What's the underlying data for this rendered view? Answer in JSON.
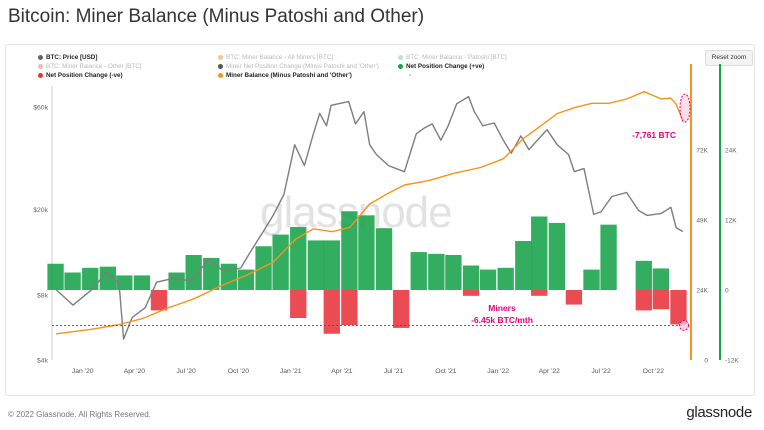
{
  "title": "Bitcoin: Miner Balance (Minus Patoshi and Other)",
  "reset_zoom": "Reset zoom",
  "legend": [
    {
      "label": "BTC: Price [USD]",
      "color": "#666666",
      "state": "active",
      "icon": "circle-marker-icon"
    },
    {
      "label": "BTC: Miner Balance - All Miners [BTC]",
      "color": "#f7931a",
      "state": "muted",
      "icon": "circle-marker-icon"
    },
    {
      "label": "BTC: Miner Balance - Patoshi [BTC]",
      "color": "#7ad0c7",
      "state": "muted",
      "icon": "circle-marker-icon"
    },
    {
      "label": "BTC: Miner Balance - Other [BTC]",
      "color": "#f28b82",
      "state": "muted",
      "icon": "circle-marker-icon"
    },
    {
      "label": "Miner Net Position Change (Minus Patoshi and 'Other')",
      "color": "#555555",
      "state": "muted",
      "icon": "circle-marker-icon"
    },
    {
      "label": "Net Position Change (+ve)",
      "color": "#17a34a",
      "state": "active",
      "icon": "circle-marker-icon"
    },
    {
      "label": "Net Position Change (-ve)",
      "color": "#e8333b",
      "state": "active",
      "icon": "circle-marker-icon"
    },
    {
      "label": "Miner Balance (Minus Patoshi and 'Other')",
      "color": "#f7931a",
      "state": "active",
      "icon": "circle-marker-icon"
    },
    {
      "label": "-",
      "color": "#17a34a",
      "state": "active",
      "icon": ""
    }
  ],
  "chart_data": {
    "type": "line",
    "x_ticks": [
      "Jan '20",
      "Apr '20",
      "Jul '20",
      "Oct '20",
      "Jan '21",
      "Apr '21",
      "Jul '21",
      "Oct '21",
      "Jan '22",
      "Apr '22",
      "Jul '22",
      "Oct '22"
    ],
    "y_left_ticks": [
      "$60k",
      "$20k",
      "$8k",
      "$4k"
    ],
    "y_left_scale": "log",
    "y_left_range": [
      4000,
      80000
    ],
    "y_mid_ticks": [
      "72K",
      "48K",
      "24K",
      "0"
    ],
    "y_mid_range": [
      0,
      96000
    ],
    "y_right_ticks": [
      "24K",
      "12K",
      "0",
      "-12K"
    ],
    "y_right_range": [
      -12000,
      36000
    ],
    "grid": false,
    "legend_position": "top",
    "series": [
      {
        "name": "BTC: Price [USD]",
        "color": "#7d7d7d",
        "axis": "left",
        "x": [
          "2019-11-15",
          "2019-12-15",
          "2020-01-15",
          "2020-02-12",
          "2020-03-05",
          "2020-03-13",
          "2020-03-28",
          "2020-04-20",
          "2020-05-10",
          "2020-06-10",
          "2020-07-10",
          "2020-08-10",
          "2020-09-05",
          "2020-10-05",
          "2020-10-25",
          "2020-11-15",
          "2020-12-01",
          "2020-12-20",
          "2021-01-08",
          "2021-01-25",
          "2021-02-10",
          "2021-02-21",
          "2021-03-05",
          "2021-03-13",
          "2021-04-13",
          "2021-04-25",
          "2021-05-10",
          "2021-05-20",
          "2021-06-01",
          "2021-06-22",
          "2021-07-20",
          "2021-08-10",
          "2021-08-25",
          "2021-09-07",
          "2021-09-22",
          "2021-10-05",
          "2021-10-20",
          "2021-11-10",
          "2021-11-20",
          "2021-12-05",
          "2021-12-25",
          "2022-01-10",
          "2022-01-24",
          "2022-02-10",
          "2022-02-24",
          "2022-03-28",
          "2022-04-15",
          "2022-05-05",
          "2022-05-15",
          "2022-06-01",
          "2022-06-18",
          "2022-07-01",
          "2022-07-20",
          "2022-08-15",
          "2022-09-05",
          "2022-09-20",
          "2022-10-15",
          "2022-11-01",
          "2022-11-10",
          "2022-11-22"
        ],
        "values": [
          8500,
          7200,
          8400,
          10200,
          9000,
          5000,
          6300,
          7000,
          9200,
          9600,
          9300,
          11800,
          10300,
          10700,
          13100,
          16000,
          18800,
          23500,
          40000,
          32000,
          45000,
          56000,
          49000,
          61000,
          63500,
          50000,
          57000,
          40000,
          36000,
          32000,
          30000,
          45000,
          48000,
          50000,
          42000,
          49000,
          62000,
          67000,
          57000,
          49000,
          50500,
          42000,
          36500,
          44000,
          38000,
          47000,
          40000,
          36000,
          30000,
          31000,
          19000,
          19500,
          23000,
          24000,
          19800,
          18800,
          19200,
          20500,
          16500,
          15800
        ]
      },
      {
        "name": "Miner Balance (Minus Patoshi and 'Other')",
        "color": "#f7931a",
        "axis": "mid",
        "x": [
          "2019-11-15",
          "2020-01-15",
          "2020-03-01",
          "2020-04-15",
          "2020-06-01",
          "2020-07-15",
          "2020-09-01",
          "2020-10-15",
          "2020-12-01",
          "2021-01-10",
          "2021-02-10",
          "2021-03-15",
          "2021-04-15",
          "2021-05-20",
          "2021-06-20",
          "2021-07-20",
          "2021-09-01",
          "2021-10-15",
          "2021-12-01",
          "2022-01-10",
          "2022-02-15",
          "2022-03-15",
          "2022-04-15",
          "2022-05-15",
          "2022-06-15",
          "2022-07-15",
          "2022-08-15",
          "2022-09-15",
          "2022-10-15",
          "2022-11-01",
          "2022-11-10",
          "2022-11-22"
        ],
        "values": [
          9000,
          10500,
          12000,
          14200,
          18000,
          21000,
          25500,
          29000,
          33500,
          41500,
          45000,
          44000,
          45500,
          53500,
          57000,
          60000,
          61500,
          64000,
          66000,
          69000,
          76000,
          80000,
          84500,
          86500,
          88000,
          88000,
          89500,
          92000,
          89500,
          89800,
          87700,
          82000
        ]
      },
      {
        "name": "Net Position Change (+ve)",
        "color": "#17a34a",
        "axis": "right",
        "x": [
          "2019-11",
          "2019-12",
          "2020-01",
          "2020-02",
          "2020-03",
          "2020-04",
          "2020-06",
          "2020-07",
          "2020-08",
          "2020-09",
          "2020-10",
          "2020-11",
          "2020-12",
          "2021-01",
          "2021-02",
          "2021-03",
          "2021-04",
          "2021-05",
          "2021-06",
          "2021-08",
          "2021-09",
          "2021-10",
          "2021-11",
          "2021-12",
          "2022-01",
          "2022-02",
          "2022-03",
          "2022-04",
          "2022-06",
          "2022-07",
          "2022-09",
          "2022-10"
        ],
        "values": [
          4500,
          3000,
          3800,
          4000,
          2500,
          2500,
          3000,
          6000,
          5500,
          4500,
          3500,
          7500,
          9500,
          10800,
          8500,
          8500,
          13500,
          12800,
          10600,
          6500,
          6200,
          6000,
          4200,
          3500,
          3800,
          8400,
          12600,
          11500,
          3500,
          11200,
          5000,
          3700
        ]
      },
      {
        "name": "Net Position Change (-ve)",
        "color": "#e8333b",
        "axis": "right",
        "x": [
          "2020-05",
          "2021-01",
          "2021-03",
          "2021-04",
          "2021-07",
          "2021-11",
          "2022-03",
          "2022-05",
          "2022-09",
          "2022-10",
          "2022-11"
        ],
        "values": [
          -3500,
          -4800,
          -7500,
          -6000,
          -6500,
          -1000,
          -1000,
          -2500,
          -3500,
          -3300,
          -5900
        ]
      }
    ],
    "annotations": [
      {
        "text": "-7,761 BTC",
        "color": "#e6007e"
      },
      {
        "text": "Miners",
        "color": "#e6007e"
      },
      {
        "text": "-6.45k BTC/mth",
        "color": "#e6007e"
      }
    ]
  },
  "footer": {
    "copyright": "© 2022 Glassnode. All Rights Reserved.",
    "brand": "glassnode",
    "watermark": "glassnode"
  }
}
